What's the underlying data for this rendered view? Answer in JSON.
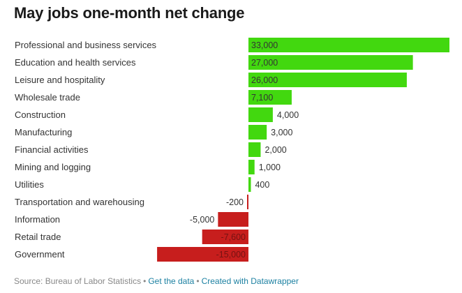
{
  "chart_data": {
    "type": "bar",
    "orientation": "horizontal",
    "title": "May jobs one-month net change",
    "categories": [
      "Professional and business services",
      "Education and health services",
      "Leisure and hospitality",
      "Wholesale trade",
      "Construction",
      "Manufacturing",
      "Financial activities",
      "Mining and logging",
      "Utilities",
      "Transportation and warehousing",
      "Information",
      "Retail trade",
      "Government"
    ],
    "values": [
      33000,
      27000,
      26000,
      7100,
      4000,
      3000,
      2000,
      1000,
      400,
      -200,
      -5000,
      -7600,
      -15000
    ],
    "labels": [
      "33,000",
      "27,000",
      "26,000",
      "7,100",
      "4,000",
      "3,000",
      "2,000",
      "1,000",
      "400",
      "-200",
      "-5,000",
      "-7,600",
      "-15,000"
    ],
    "positive_color": "#42d80f",
    "negative_color": "#c71e1d",
    "xlim": [
      -15000,
      33000
    ]
  },
  "footer": {
    "source": "Source: Bureau of Labor Statistics",
    "get_data": "Get the data",
    "created_with": "Created with Datawrapper"
  }
}
